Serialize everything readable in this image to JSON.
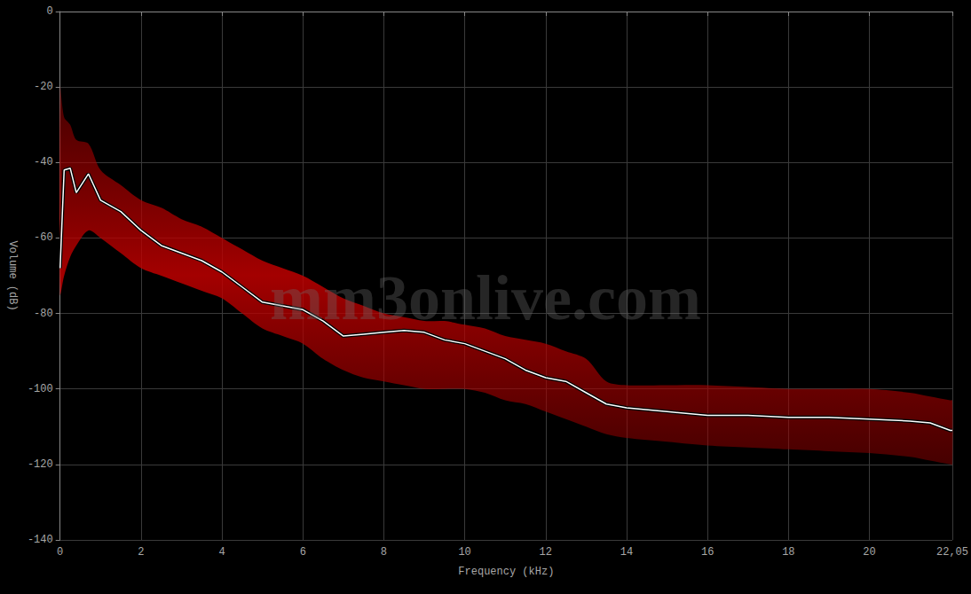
{
  "chart_data": {
    "type": "line",
    "x_label": "Frequency (kHz)",
    "y_label": "Volume (dB)",
    "watermark": "mm3onlive.com",
    "xlim": [
      0,
      22.05
    ],
    "xticks": [
      0,
      2,
      4,
      6,
      8,
      10,
      12,
      14,
      16,
      18,
      20,
      {
        "value": 22.05,
        "label": "22,05"
      }
    ],
    "ylim": [
      -140,
      0
    ],
    "yticks": [
      -140,
      -120,
      -100,
      -80,
      -60,
      -40,
      -20,
      0
    ],
    "grid": true,
    "color": "#ffffff",
    "band_color": "#c00000",
    "x": [
      0,
      0.1,
      0.25,
      0.4,
      0.7,
      1,
      1.5,
      2,
      2.5,
      3,
      3.5,
      4,
      4.5,
      5,
      5.5,
      6,
      6.5,
      7,
      7.5,
      8,
      8.5,
      9,
      9.5,
      10,
      10.5,
      11,
      11.5,
      12,
      12.5,
      13,
      13.5,
      14,
      15,
      16,
      17,
      18,
      19,
      20,
      21,
      21.5,
      22,
      22.05
    ],
    "values": [
      -68,
      -42,
      -41.5,
      -48,
      -43,
      -50,
      -53,
      -58,
      -62,
      -64,
      -66,
      -69,
      -73,
      -77,
      -78,
      -79,
      -82,
      -86,
      -85.5,
      -85,
      -84.5,
      -85,
      -87,
      -88,
      -90,
      -92,
      -95,
      -97,
      -98,
      -101,
      -104,
      -105,
      -106,
      -107,
      -107,
      -107.5,
      -107.5,
      -108,
      -108.5,
      -109,
      -111,
      -111
    ],
    "band_high": [
      -20,
      -28,
      -30,
      -34,
      -35,
      -42,
      -46,
      -50,
      -52,
      -55,
      -57,
      -60,
      -63,
      -66,
      -68,
      -70,
      -73,
      -76,
      -78,
      -80,
      -81,
      -82,
      -82,
      -83,
      -84,
      -86,
      -87,
      -88,
      -90,
      -92,
      -98,
      -99,
      -99,
      -99,
      -99.5,
      -100,
      -100,
      -100,
      -101,
      -102,
      -103,
      -103
    ],
    "band_high_unused": null,
    "band_low": [
      -75,
      -70,
      -65,
      -62,
      -58,
      -60,
      -64,
      -68,
      -70,
      -72,
      -74,
      -76,
      -80,
      -84,
      -86,
      -88,
      -92,
      -95,
      -97,
      -98,
      -99,
      -100,
      -100,
      -100,
      -101,
      -103,
      -104,
      -106,
      -108,
      -110,
      -112,
      -113,
      -114,
      -115,
      -115.5,
      -116,
      -116.5,
      -117,
      -118,
      -119,
      -120,
      -120
    ]
  }
}
